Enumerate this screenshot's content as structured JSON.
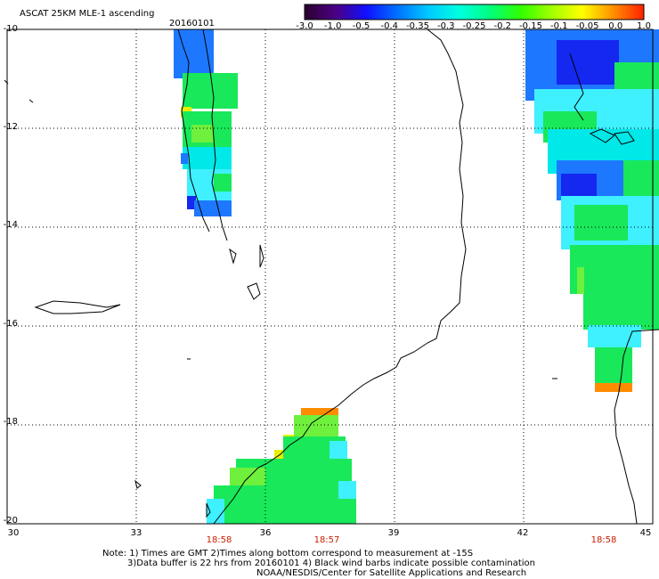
{
  "header": {
    "title": "ASCAT 25KM MLE-1 ascending",
    "date": "20160101"
  },
  "colorbar": {
    "labels": [
      "-3.0",
      "-1.0",
      "-0.5",
      "-0.4",
      "-0.35",
      "-0.3",
      "-0.25",
      "-0.2",
      "-0.15",
      "-0.1",
      "-0.05",
      "0.0",
      "1.0"
    ],
    "colors": [
      "#2a0030",
      "#4b0082",
      "#1010ff",
      "#0070ff",
      "#00c8ff",
      "#00ffe0",
      "#00ff80",
      "#30ff00",
      "#a0ff00",
      "#ffff00",
      "#ff9000",
      "#ff2000"
    ]
  },
  "map": {
    "lat_labels": [
      "-10",
      "-12",
      "-14",
      "-16",
      "-18",
      "-20"
    ],
    "lon_labels": [
      "30",
      "33",
      "36",
      "39",
      "42",
      "45"
    ],
    "pass_times": [
      "18:58",
      "18:57",
      "18:58"
    ],
    "colors": {
      "green": "#19e85a",
      "lime": "#6ef03c",
      "cyan": "#00e8e8",
      "lightcyan": "#3ff0ff",
      "blue": "#1e78ff",
      "darkblue": "#1428f0",
      "yellow": "#e6f000",
      "orange": "#ff8c00",
      "gridline": "#000000",
      "coast": "#000000"
    }
  },
  "notes": {
    "line1": "Note: 1) Times are GMT 2)Times along bottom correspond to measurement at -15S",
    "line2": "3)Data buffer is 22 hrs from 20160101 4) Black wind barbs indicate possible contamination",
    "line3": "NOAA/NESDIS/Center for Satellite Applications and Research"
  }
}
